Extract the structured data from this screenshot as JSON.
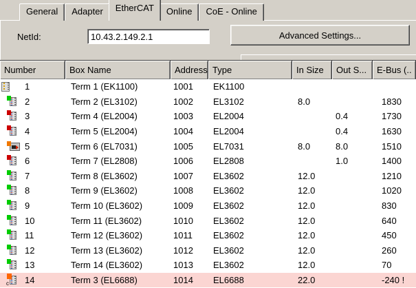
{
  "tabs": [
    {
      "label": "General",
      "active": false
    },
    {
      "label": "Adapter",
      "active": false
    },
    {
      "label": "EtherCAT",
      "active": true
    },
    {
      "label": "Online",
      "active": false
    },
    {
      "label": "CoE - Online",
      "active": false
    }
  ],
  "netid": {
    "label": "NetId:",
    "value": "10.43.2.149.2.1"
  },
  "toolbar": {
    "advanced_settings_label": "Advanced Settings..."
  },
  "table": {
    "columns": [
      "Number",
      "Box Name",
      "Address",
      "Type",
      "In Size",
      "Out S...",
      "E-Bus (.."
    ],
    "rows": [
      {
        "number": "1",
        "icon": "coupler",
        "box_name": "Term 1 (EK1100)",
        "address": "1001",
        "type": "EK1100",
        "in_size": "",
        "out_size": "",
        "ebus": "",
        "highlighted": false
      },
      {
        "number": "2",
        "icon": "input",
        "box_name": "Term 2 (EL3102)",
        "address": "1002",
        "type": "EL3102",
        "in_size": "8.0",
        "out_size": "",
        "ebus": "1830",
        "highlighted": false
      },
      {
        "number": "3",
        "icon": "output",
        "box_name": "Term 4 (EL2004)",
        "address": "1003",
        "type": "EL2004",
        "in_size": "",
        "out_size": "0.4",
        "ebus": "1730",
        "highlighted": false
      },
      {
        "number": "4",
        "icon": "output",
        "box_name": "Term 5 (EL2004)",
        "address": "1004",
        "type": "EL2004",
        "in_size": "",
        "out_size": "0.4",
        "ebus": "1630",
        "highlighted": false
      },
      {
        "number": "5",
        "icon": "motor",
        "box_name": "Term 6 (EL7031)",
        "address": "1005",
        "type": "EL7031",
        "in_size": "8.0",
        "out_size": "8.0",
        "ebus": "1510",
        "highlighted": false
      },
      {
        "number": "6",
        "icon": "output",
        "box_name": "Term 7 (EL2808)",
        "address": "1006",
        "type": "EL2808",
        "in_size": "",
        "out_size": "1.0",
        "ebus": "1400",
        "highlighted": false
      },
      {
        "number": "7",
        "icon": "input",
        "box_name": "Term 8 (EL3602)",
        "address": "1007",
        "type": "EL3602",
        "in_size": "12.0",
        "out_size": "",
        "ebus": "1210",
        "highlighted": false
      },
      {
        "number": "8",
        "icon": "input",
        "box_name": "Term 9 (EL3602)",
        "address": "1008",
        "type": "EL3602",
        "in_size": "12.0",
        "out_size": "",
        "ebus": "1020",
        "highlighted": false
      },
      {
        "number": "9",
        "icon": "input",
        "box_name": "Term 10 (EL3602)",
        "address": "1009",
        "type": "EL3602",
        "in_size": "12.0",
        "out_size": "",
        "ebus": "830",
        "highlighted": false
      },
      {
        "number": "10",
        "icon": "input",
        "box_name": "Term 11 (EL3602)",
        "address": "1010",
        "type": "EL3602",
        "in_size": "12.0",
        "out_size": "",
        "ebus": "640",
        "highlighted": false
      },
      {
        "number": "11",
        "icon": "input",
        "box_name": "Term 12 (EL3602)",
        "address": "1011",
        "type": "EL3602",
        "in_size": "12.0",
        "out_size": "",
        "ebus": "450",
        "highlighted": false
      },
      {
        "number": "12",
        "icon": "input",
        "box_name": "Term 13 (EL3602)",
        "address": "1012",
        "type": "EL3602",
        "in_size": "12.0",
        "out_size": "",
        "ebus": "260",
        "highlighted": false
      },
      {
        "number": "13",
        "icon": "input",
        "box_name": "Term 14 (EL3602)",
        "address": "1013",
        "type": "EL3602",
        "in_size": "12.0",
        "out_size": "",
        "ebus": "70",
        "highlighted": false
      },
      {
        "number": "14",
        "icon": "comm",
        "box_name": "Term 3 (EL6688)",
        "address": "1014",
        "type": "EL6688",
        "in_size": "22.0",
        "out_size": "",
        "ebus": "-240 !",
        "highlighted": true
      }
    ]
  },
  "icons": {
    "comm_marker": "c"
  },
  "colors": {
    "face": "#D4D0C8",
    "highlight_row": "#FBD5D2",
    "input_square": "#00CC00",
    "output_square": "#CC0000",
    "motor_square": "#F07800",
    "comm_square": "#FF6600"
  }
}
